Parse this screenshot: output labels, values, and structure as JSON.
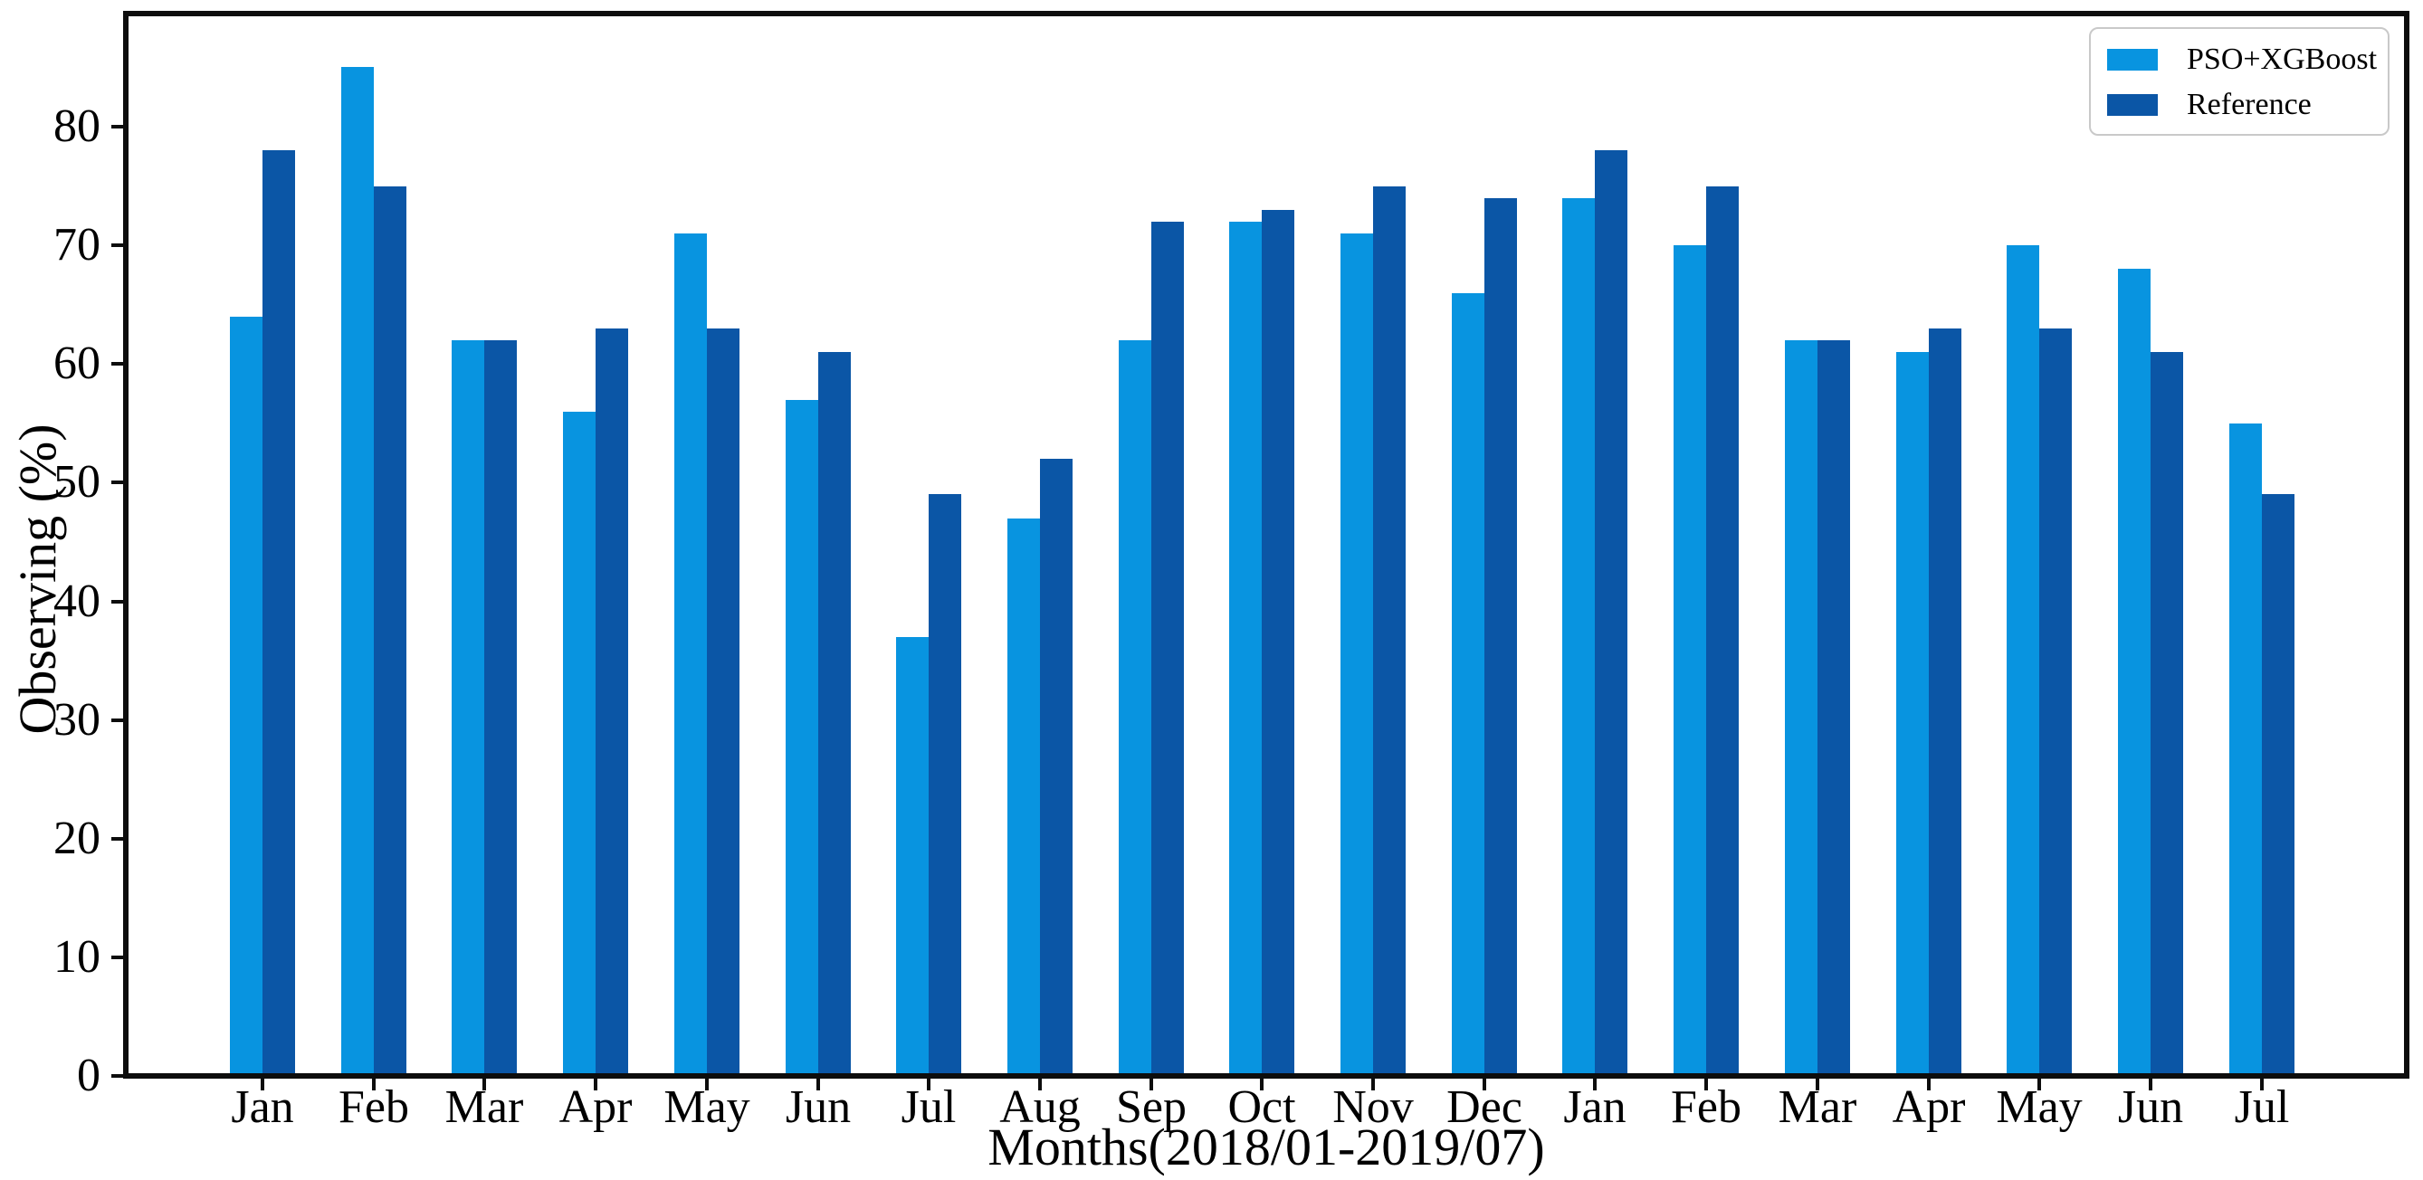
{
  "figure": {
    "xlabel": "Months(2018/01-2019/07)",
    "ylabel": "Observing (%)"
  },
  "chart_data": {
    "type": "bar",
    "title": "",
    "xlabel": "Months(2018/01-2019/07)",
    "ylabel": "Observing (%)",
    "categories": [
      "Jan",
      "Feb",
      "Mar",
      "Apr",
      "May",
      "Jun",
      "Jul",
      "Aug",
      "Sep",
      "Oct",
      "Nov",
      "Dec",
      "Jan",
      "Feb",
      "Mar",
      "Apr",
      "May",
      "Jun",
      "Jul"
    ],
    "series": [
      {
        "name": "PSO+XGBoost",
        "color": "#0894e0",
        "values": [
          64,
          85,
          62,
          56,
          71,
          57,
          37,
          47,
          62,
          72,
          71,
          66,
          74,
          70,
          62,
          61,
          70,
          68,
          55
        ]
      },
      {
        "name": "Reference",
        "color": "#0b56a6",
        "values": [
          78,
          75,
          62,
          63,
          63,
          61,
          49,
          52,
          72,
          73,
          75,
          74,
          78,
          75,
          62,
          63,
          63,
          61,
          49
        ]
      }
    ],
    "yticks": [
      0,
      10,
      20,
      30,
      40,
      50,
      60,
      70,
      80
    ],
    "ylim": [
      0,
      89.2
    ],
    "grid": false,
    "legend_position": "upper right",
    "frame_color": "#0d0d0d"
  }
}
